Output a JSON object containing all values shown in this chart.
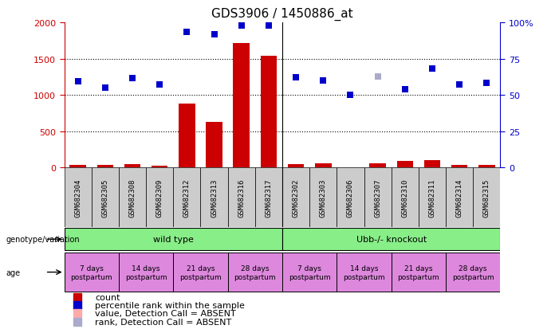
{
  "title": "GDS3906 / 1450886_at",
  "samples": [
    "GSM682304",
    "GSM682305",
    "GSM682308",
    "GSM682309",
    "GSM682312",
    "GSM682313",
    "GSM682316",
    "GSM682317",
    "GSM682302",
    "GSM682303",
    "GSM682306",
    "GSM682307",
    "GSM682310",
    "GSM682311",
    "GSM682314",
    "GSM682315"
  ],
  "bar_values": [
    30,
    35,
    50,
    25,
    880,
    630,
    1710,
    1535,
    50,
    60,
    5,
    60,
    85,
    100,
    30,
    30
  ],
  "bar_absent": [
    false,
    false,
    false,
    false,
    false,
    false,
    false,
    false,
    false,
    false,
    false,
    false,
    false,
    false,
    false,
    false
  ],
  "dot_values": [
    59.5,
    54.75,
    61.5,
    57.25,
    93.5,
    92.0,
    98.0,
    97.75,
    62.0,
    60.0,
    50.25,
    62.75,
    53.75,
    68.0,
    57.0,
    58.0
  ],
  "dot_absent": [
    false,
    false,
    false,
    false,
    false,
    false,
    false,
    false,
    false,
    false,
    false,
    true,
    false,
    false,
    false,
    false
  ],
  "bar_color": "#cc0000",
  "bar_absent_color": "#ffaaaa",
  "dot_color": "#0000cc",
  "dot_absent_color": "#aaaacc",
  "ylim_left": [
    0,
    2000
  ],
  "ylim_right": [
    0,
    100
  ],
  "left_ticks": [
    0,
    500,
    1000,
    1500,
    2000
  ],
  "right_ticks": [
    0,
    25,
    50,
    75,
    100
  ],
  "genotype_wt_label": "wild type",
  "genotype_ko_label": "Ubb-/- knockout",
  "genotype_color": "#88ee88",
  "age_labels": [
    "7 days\npostpartum",
    "14 days\npostpartum",
    "21 days\npostpartum",
    "28 days\npostpartum",
    "7 days\npostpartum",
    "14 days\npostpartum",
    "21 days\npostpartum",
    "28 days\npostpartum"
  ],
  "age_color": "#dd88dd",
  "sample_box_color": "#cccccc",
  "wt_count": 8,
  "ko_count": 8,
  "separator_col": 7.5,
  "legend_items": [
    "count",
    "percentile rank within the sample",
    "value, Detection Call = ABSENT",
    "rank, Detection Call = ABSENT"
  ],
  "legend_colors": [
    "#cc0000",
    "#0000cc",
    "#ffaaaa",
    "#aaaacc"
  ],
  "bg_color": "#ffffff",
  "left_axis_color": "#cc0000",
  "right_axis_color": "#0000cc",
  "title_fontsize": 11,
  "tick_fontsize": 8,
  "sample_fontsize": 6.5,
  "annotation_fontsize": 8,
  "legend_fontsize": 8
}
